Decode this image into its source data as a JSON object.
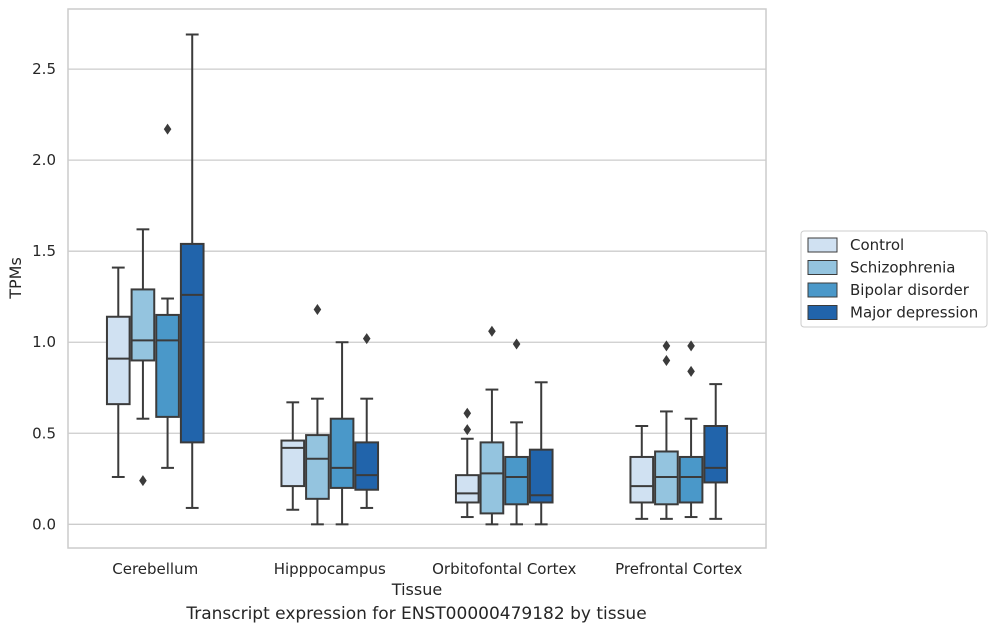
{
  "caption": "Transcript expression for ENST00000479182 by tissue",
  "chart_data": {
    "type": "box",
    "title": "",
    "xlabel": "Tissue",
    "ylabel": "TPMs",
    "ylim": [
      -0.13,
      2.83
    ],
    "yticks": [
      0.0,
      0.5,
      1.0,
      1.5,
      2.0,
      2.5
    ],
    "ytick_labels": [
      "0.0",
      "0.5",
      "1.0",
      "1.5",
      "2.0",
      "2.5"
    ],
    "grid": "horizontal",
    "legend_position": "outside-right",
    "categories": [
      "Cerebellum",
      "Hipppocampus",
      "Orbitofontal Cortex",
      "Prefrontal Cortex"
    ],
    "series": [
      {
        "name": "Control",
        "color": "#d0e1f2",
        "boxes": [
          {
            "whislo": 0.26,
            "q1": 0.66,
            "med": 0.91,
            "q3": 1.14,
            "whishi": 1.41,
            "fliers": []
          },
          {
            "whislo": 0.08,
            "q1": 0.21,
            "med": 0.42,
            "q3": 0.46,
            "whishi": 0.67,
            "fliers": []
          },
          {
            "whislo": 0.04,
            "q1": 0.12,
            "med": 0.17,
            "q3": 0.27,
            "whishi": 0.47,
            "fliers": [
              0.52,
              0.61
            ]
          },
          {
            "whislo": 0.03,
            "q1": 0.12,
            "med": 0.21,
            "q3": 0.37,
            "whishi": 0.54,
            "fliers": []
          }
        ]
      },
      {
        "name": "Schizophrenia",
        "color": "#94c4df",
        "boxes": [
          {
            "whislo": 0.58,
            "q1": 0.9,
            "med": 1.01,
            "q3": 1.29,
            "whishi": 1.62,
            "fliers": [
              0.24
            ]
          },
          {
            "whislo": 0.0,
            "q1": 0.14,
            "med": 0.36,
            "q3": 0.49,
            "whishi": 0.69,
            "fliers": [
              1.18
            ]
          },
          {
            "whislo": 0.0,
            "q1": 0.06,
            "med": 0.28,
            "q3": 0.45,
            "whishi": 0.74,
            "fliers": [
              1.06
            ]
          },
          {
            "whislo": 0.03,
            "q1": 0.11,
            "med": 0.26,
            "q3": 0.4,
            "whishi": 0.62,
            "fliers": [
              0.9,
              0.98
            ]
          }
        ]
      },
      {
        "name": "Bipolar disorder",
        "color": "#4a98c9",
        "boxes": [
          {
            "whislo": 0.31,
            "q1": 0.59,
            "med": 1.01,
            "q3": 1.15,
            "whishi": 1.24,
            "fliers": [
              2.17
            ]
          },
          {
            "whislo": 0.0,
            "q1": 0.2,
            "med": 0.31,
            "q3": 0.58,
            "whishi": 1.0,
            "fliers": []
          },
          {
            "whislo": 0.0,
            "q1": 0.11,
            "med": 0.26,
            "q3": 0.37,
            "whishi": 0.56,
            "fliers": [
              0.99
            ]
          },
          {
            "whislo": 0.04,
            "q1": 0.12,
            "med": 0.26,
            "q3": 0.37,
            "whishi": 0.58,
            "fliers": [
              0.84,
              0.98
            ]
          }
        ]
      },
      {
        "name": "Major depression",
        "color": "#2164ab",
        "boxes": [
          {
            "whislo": 0.09,
            "q1": 0.45,
            "med": 1.26,
            "q3": 1.54,
            "whishi": 2.69,
            "fliers": []
          },
          {
            "whislo": 0.09,
            "q1": 0.19,
            "med": 0.27,
            "q3": 0.45,
            "whishi": 0.69,
            "fliers": [
              1.02
            ]
          },
          {
            "whislo": 0.0,
            "q1": 0.12,
            "med": 0.16,
            "q3": 0.41,
            "whishi": 0.78,
            "fliers": []
          },
          {
            "whislo": 0.03,
            "q1": 0.23,
            "med": 0.31,
            "q3": 0.54,
            "whishi": 0.77,
            "fliers": []
          }
        ]
      }
    ]
  }
}
